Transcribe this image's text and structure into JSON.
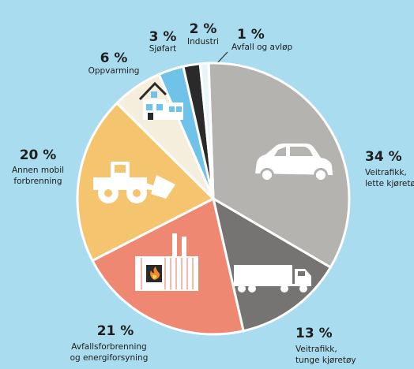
{
  "chart_data": {
    "type": "pie",
    "title": "",
    "start_angle_deg": -2,
    "direction": "clockwise",
    "slices": [
      {
        "value": 34,
        "pct_label": "34 %",
        "label_lines": [
          "Veitrafikk,",
          "lette kjøretøy"
        ],
        "color": "#b5b3b0",
        "icon": "car-icon"
      },
      {
        "value": 13,
        "pct_label": "13 %",
        "label_lines": [
          "Veitrafikk,",
          "tunge kjøretøy"
        ],
        "color": "#757472",
        "icon": "truck-icon"
      },
      {
        "value": 21,
        "pct_label": "21 %",
        "label_lines": [
          "Avfallsforbrenning",
          "og energiforsyning"
        ],
        "color": "#ee8873",
        "icon": "factory-icon"
      },
      {
        "value": 20,
        "pct_label": "20 %",
        "label_lines": [
          "Annen mobil",
          "forbrenning"
        ],
        "color": "#f5c46e",
        "icon": "wheel-loader-icon"
      },
      {
        "value": 6,
        "pct_label": "6 %",
        "label_lines": [
          "Oppvarming"
        ],
        "color": "#f6eedd",
        "icon": "house-icon"
      },
      {
        "value": 3,
        "pct_label": "3 %",
        "label_lines": [
          "Sjøfart"
        ],
        "color": "#6fc3e8",
        "icon": ""
      },
      {
        "value": 2,
        "pct_label": "2 %",
        "label_lines": [
          "Industri"
        ],
        "color": "#2a2a2a",
        "icon": ""
      },
      {
        "value": 1,
        "pct_label": "1 %",
        "label_lines": [
          "Avfall og avløp"
        ],
        "color": "#e9f5fb",
        "icon": ""
      }
    ]
  }
}
